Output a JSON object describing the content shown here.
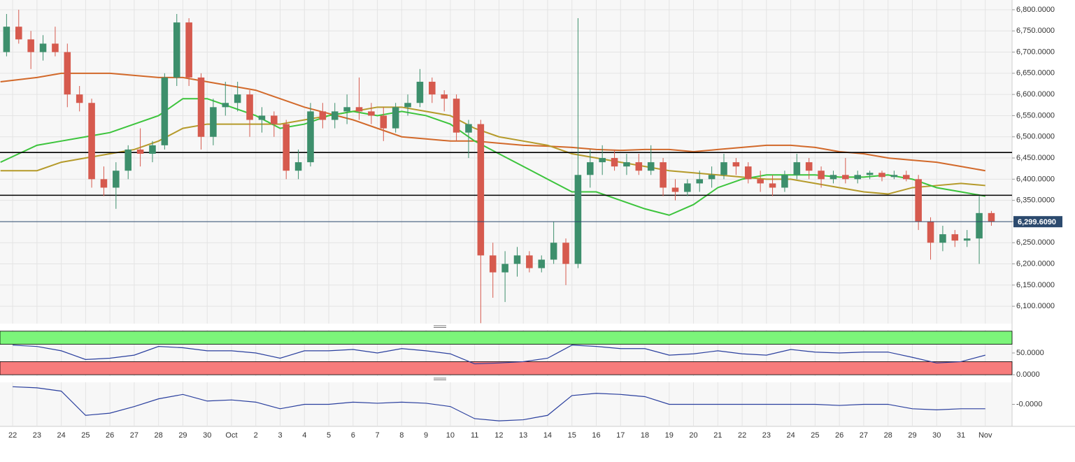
{
  "chart_data": [
    {
      "type": "candlestick",
      "xlim": [
        -0.52,
        41.1
      ],
      "xticks": [
        {
          "value": 0,
          "label": "22"
        },
        {
          "value": 1,
          "label": "23"
        },
        {
          "value": 2,
          "label": "24"
        },
        {
          "value": 3,
          "label": "25"
        },
        {
          "value": 4,
          "label": "26"
        },
        {
          "value": 5,
          "label": "27"
        },
        {
          "value": 6,
          "label": "28"
        },
        {
          "value": 7,
          "label": "29"
        },
        {
          "value": 8,
          "label": "30"
        },
        {
          "value": 9,
          "label": "Oct"
        },
        {
          "value": 10,
          "label": "2"
        },
        {
          "value": 11,
          "label": "3"
        },
        {
          "value": 12,
          "label": "4"
        },
        {
          "value": 13,
          "label": "5"
        },
        {
          "value": 14,
          "label": "6"
        },
        {
          "value": 15,
          "label": "7"
        },
        {
          "value": 16,
          "label": "8"
        },
        {
          "value": 17,
          "label": "9"
        },
        {
          "value": 18,
          "label": "10"
        },
        {
          "value": 19,
          "label": "11"
        },
        {
          "value": 20,
          "label": "12"
        },
        {
          "value": 21,
          "label": "13"
        },
        {
          "value": 22,
          "label": "14"
        },
        {
          "value": 23,
          "label": "15"
        },
        {
          "value": 24,
          "label": "16"
        },
        {
          "value": 25,
          "label": "17"
        },
        {
          "value": 26,
          "label": "18"
        },
        {
          "value": 27,
          "label": "19"
        },
        {
          "value": 28,
          "label": "20"
        },
        {
          "value": 29,
          "label": "21"
        },
        {
          "value": 30,
          "label": "22"
        },
        {
          "value": 31,
          "label": "23"
        },
        {
          "value": 32,
          "label": "24"
        },
        {
          "value": 33,
          "label": "25"
        },
        {
          "value": 34,
          "label": "26"
        },
        {
          "value": 35,
          "label": "27"
        },
        {
          "value": 36,
          "label": "28"
        },
        {
          "value": 37,
          "label": "29"
        },
        {
          "value": 38,
          "label": "30"
        },
        {
          "value": 39,
          "label": "31"
        },
        {
          "value": 40,
          "label": "Nov"
        }
      ],
      "ylim": [
        6059,
        6823
      ],
      "yticks": [
        {
          "value": 6100,
          "label": "6,100.0000"
        },
        {
          "value": 6150,
          "label": "6,150.0000"
        },
        {
          "value": 6200,
          "label": "6,200.0000"
        },
        {
          "value": 6250,
          "label": "6,250.0000"
        },
        {
          "value": 6300,
          "label": "6,300.0000"
        },
        {
          "value": 6350,
          "label": "6,350.0000"
        },
        {
          "value": 6400,
          "label": "6,400.0000"
        },
        {
          "value": 6450,
          "label": "6,450.0000"
        },
        {
          "value": 6500,
          "label": "6,500.0000"
        },
        {
          "value": 6550,
          "label": "6,550.0000"
        },
        {
          "value": 6600,
          "label": "6,600.0000"
        },
        {
          "value": 6650,
          "label": "6,650.0000"
        },
        {
          "value": 6700,
          "label": "6,700.0000"
        },
        {
          "value": 6750,
          "label": "6,750.0000"
        },
        {
          "value": 6800,
          "label": "6,800.0000"
        }
      ],
      "grid": true,
      "up_color": "#3d8f6c",
      "down_color": "#d65a4e",
      "x": [
        -0.25,
        0.25,
        0.75,
        1.25,
        1.75,
        2.25,
        2.75,
        3.25,
        3.75,
        4.25,
        4.75,
        5.25,
        5.75,
        6.25,
        6.75,
        7.25,
        7.75,
        8.25,
        8.75,
        9.25,
        9.75,
        10.25,
        10.75,
        11.25,
        11.75,
        12.25,
        12.75,
        13.25,
        13.75,
        14.25,
        14.75,
        15.25,
        15.75,
        16.25,
        16.75,
        17.25,
        17.75,
        18.25,
        18.75,
        19.25,
        19.75,
        20.25,
        20.75,
        21.25,
        21.75,
        22.25,
        22.75,
        23.25,
        23.75,
        24.25,
        24.75,
        25.25,
        25.75,
        26.25,
        26.75,
        27.25,
        27.75,
        28.25,
        28.75,
        29.25,
        29.75,
        30.25,
        30.75,
        31.25,
        31.75,
        32.25,
        32.75,
        33.25,
        33.75,
        34.25,
        34.75,
        35.25,
        35.75,
        36.25,
        36.75,
        37.25,
        37.75,
        38.25,
        38.75,
        39.25,
        39.75,
        40.25
      ],
      "open": [
        6700,
        6760,
        6730,
        6700,
        6720,
        6700,
        6600,
        6580,
        6400,
        6380,
        6420,
        6470,
        6460,
        6480,
        6640,
        6770,
        6640,
        6500,
        6570,
        6580,
        6600,
        6540,
        6550,
        6530,
        6420,
        6440,
        6560,
        6540,
        6560,
        6570,
        6560,
        6550,
        6520,
        6570,
        6580,
        6630,
        6600,
        6590,
        6510,
        6530,
        6220,
        6180,
        6200,
        6220,
        6190,
        6210,
        6250,
        6200,
        6410,
        6440,
        6450,
        6430,
        6440,
        6420,
        6440,
        6380,
        6370,
        6390,
        6400,
        6410,
        6440,
        6430,
        6400,
        6390,
        6380,
        6410,
        6440,
        6420,
        6400,
        6410,
        6400,
        6410,
        6415,
        6405,
        6410,
        6400,
        6300,
        6250,
        6270,
        6255,
        6260,
        6320
      ],
      "high": [
        6790,
        6800,
        6750,
        6740,
        6760,
        6720,
        6620,
        6590,
        6430,
        6440,
        6480,
        6520,
        6490,
        6650,
        6790,
        6780,
        6650,
        6590,
        6630,
        6630,
        6610,
        6570,
        6560,
        6540,
        6470,
        6580,
        6580,
        6580,
        6600,
        6640,
        6580,
        6570,
        6580,
        6600,
        6660,
        6640,
        6610,
        6600,
        6540,
        6540,
        6250,
        6230,
        6240,
        6230,
        6220,
        6300,
        6260,
        6780,
        6470,
        6480,
        6470,
        6460,
        6460,
        6480,
        6450,
        6400,
        6400,
        6420,
        6430,
        6460,
        6450,
        6440,
        6420,
        6410,
        6420,
        6460,
        6450,
        6430,
        6420,
        6450,
        6420,
        6420,
        6420,
        6420,
        6420,
        6410,
        6310,
        6290,
        6280,
        6280,
        6360,
        6325
      ],
      "low": [
        6690,
        6720,
        6660,
        6680,
        6690,
        6570,
        6560,
        6380,
        6360,
        6330,
        6400,
        6430,
        6440,
        6470,
        6620,
        6620,
        6470,
        6480,
        6550,
        6560,
        6500,
        6510,
        6500,
        6400,
        6400,
        6430,
        6520,
        6520,
        6530,
        6540,
        6530,
        6490,
        6510,
        6550,
        6570,
        6580,
        6560,
        6490,
        6450,
        6060,
        6120,
        6110,
        6170,
        6180,
        6180,
        6200,
        6150,
        6190,
        6380,
        6410,
        6420,
        6410,
        6410,
        6410,
        6360,
        6350,
        6360,
        6370,
        6380,
        6400,
        6410,
        6390,
        6370,
        6360,
        6370,
        6400,
        6400,
        6380,
        6390,
        6390,
        6390,
        6400,
        6395,
        6400,
        6395,
        6280,
        6210,
        6230,
        6240,
        6240,
        6200,
        6290
      ],
      "close": [
        6760,
        6730,
        6700,
        6720,
        6700,
        6600,
        6580,
        6400,
        6380,
        6420,
        6470,
        6460,
        6480,
        6640,
        6770,
        6640,
        6500,
        6570,
        6580,
        6600,
        6540,
        6550,
        6530,
        6420,
        6440,
        6560,
        6540,
        6560,
        6570,
        6560,
        6550,
        6520,
        6570,
        6580,
        6630,
        6600,
        6590,
        6510,
        6530,
        6220,
        6180,
        6200,
        6220,
        6190,
        6210,
        6250,
        6200,
        6410,
        6440,
        6450,
        6430,
        6440,
        6420,
        6440,
        6380,
        6370,
        6390,
        6400,
        6410,
        6440,
        6430,
        6400,
        6390,
        6380,
        6410,
        6440,
        6420,
        6400,
        6410,
        6400,
        6410,
        6415,
        6405,
        6410,
        6400,
        6300,
        6250,
        6270,
        6255,
        6260,
        6320,
        6300
      ],
      "overlays": {
        "x": [
          -0.5,
          1,
          2,
          3,
          4,
          5,
          6,
          7,
          8,
          9,
          10,
          11,
          12,
          13,
          14,
          15,
          16,
          17,
          18,
          19,
          20,
          21,
          22,
          23,
          24,
          25,
          26,
          27,
          28,
          29,
          30,
          31,
          32,
          33,
          34,
          35,
          36,
          37,
          38,
          39,
          40
        ],
        "series": [
          {
            "color": "#d2692a",
            "values": [
              6630,
              6640,
              6650,
              6650,
              6650,
              6645,
              6640,
              6640,
              6630,
              6620,
              6610,
              6590,
              6570,
              6555,
              6540,
              6520,
              6500,
              6495,
              6490,
              6490,
              6485,
              6480,
              6478,
              6475,
              6470,
              6468,
              6470,
              6470,
              6465,
              6470,
              6475,
              6480,
              6480,
              6475,
              6465,
              6460,
              6450,
              6445,
              6440,
              6430,
              6420
            ]
          },
          {
            "color": "#b59a2a",
            "values": [
              6420,
              6420,
              6440,
              6450,
              6460,
              6470,
              6490,
              6520,
              6530,
              6530,
              6530,
              6530,
              6540,
              6550,
              6560,
              6570,
              6570,
              6560,
              6550,
              6520,
              6500,
              6490,
              6480,
              6460,
              6450,
              6440,
              6430,
              6420,
              6415,
              6410,
              6405,
              6400,
              6400,
              6390,
              6380,
              6370,
              6365,
              6380,
              6385,
              6390,
              6385
            ]
          },
          {
            "color": "#3cc43c",
            "values": [
              6440,
              6480,
              6490,
              6500,
              6510,
              6530,
              6550,
              6590,
              6590,
              6570,
              6550,
              6520,
              6530,
              6550,
              6560,
              6550,
              6560,
              6550,
              6530,
              6490,
              6460,
              6430,
              6400,
              6370,
              6370,
              6350,
              6330,
              6315,
              6340,
              6380,
              6400,
              6410,
              6410,
              6410,
              6405,
              6405,
              6410,
              6400,
              6380,
              6370,
              6360
            ]
          }
        ]
      },
      "hlines": [
        {
          "value": 6463,
          "color": "#000000"
        },
        {
          "value": 6362,
          "color": "#000000"
        }
      ],
      "last_price": {
        "value": 6299.609,
        "label": "6,299.6090",
        "color": "#2c4a6e"
      }
    },
    {
      "type": "line",
      "xlim": [
        -0.52,
        41.1
      ],
      "ylim": [
        -3,
        103
      ],
      "yticks": [
        {
          "value": 0,
          "label": "0.0000"
        },
        {
          "value": 50,
          "label": "50.0000"
        }
      ],
      "zones": [
        {
          "from": 70,
          "to": 100,
          "color": "#7cf57a"
        },
        {
          "from": 0,
          "to": 30,
          "color": "#f77c7c"
        }
      ],
      "x": [
        0,
        1,
        2,
        3,
        4,
        5,
        6,
        7,
        8,
        9,
        10,
        11,
        12,
        13,
        14,
        15,
        16,
        17,
        18,
        19,
        20,
        21,
        22,
        23,
        24,
        25,
        26,
        27,
        28,
        29,
        30,
        31,
        32,
        33,
        34,
        35,
        36,
        37,
        38,
        39,
        40
      ],
      "series": [
        {
          "color": "#2a3f9e",
          "values": [
            68,
            65,
            55,
            35,
            38,
            45,
            65,
            62,
            55,
            55,
            50,
            38,
            55,
            55,
            58,
            50,
            60,
            55,
            48,
            25,
            27,
            30,
            38,
            68,
            65,
            60,
            60,
            45,
            48,
            55,
            48,
            45,
            58,
            52,
            50,
            52,
            52,
            40,
            27,
            30,
            45
          ]
        }
      ]
    },
    {
      "type": "line",
      "xlim": [
        -0.52,
        41.1
      ],
      "ylim": [
        -1,
        1
      ],
      "yticks": [
        {
          "value": 0,
          "label": "-0.0000"
        }
      ],
      "x": [
        0,
        1,
        2,
        3,
        4,
        5,
        6,
        7,
        8,
        9,
        10,
        11,
        12,
        13,
        14,
        15,
        16,
        17,
        18,
        19,
        20,
        21,
        22,
        23,
        24,
        25,
        26,
        27,
        28,
        29,
        30,
        31,
        32,
        33,
        34,
        35,
        36,
        37,
        38,
        39,
        40
      ],
      "series": [
        {
          "color": "#2a3f9e",
          "values": [
            0.8,
            0.75,
            0.6,
            -0.5,
            -0.4,
            -0.1,
            0.25,
            0.45,
            0.15,
            0.2,
            0.1,
            -0.2,
            0,
            0,
            0.1,
            0.05,
            0.1,
            0.05,
            -0.1,
            -0.65,
            -0.75,
            -0.7,
            -0.5,
            0.4,
            0.5,
            0.45,
            0.35,
            0,
            0,
            0,
            0,
            0,
            0,
            0,
            -0.05,
            0,
            0,
            -0.2,
            -0.25,
            -0.2,
            -0.2
          ]
        }
      ]
    }
  ]
}
